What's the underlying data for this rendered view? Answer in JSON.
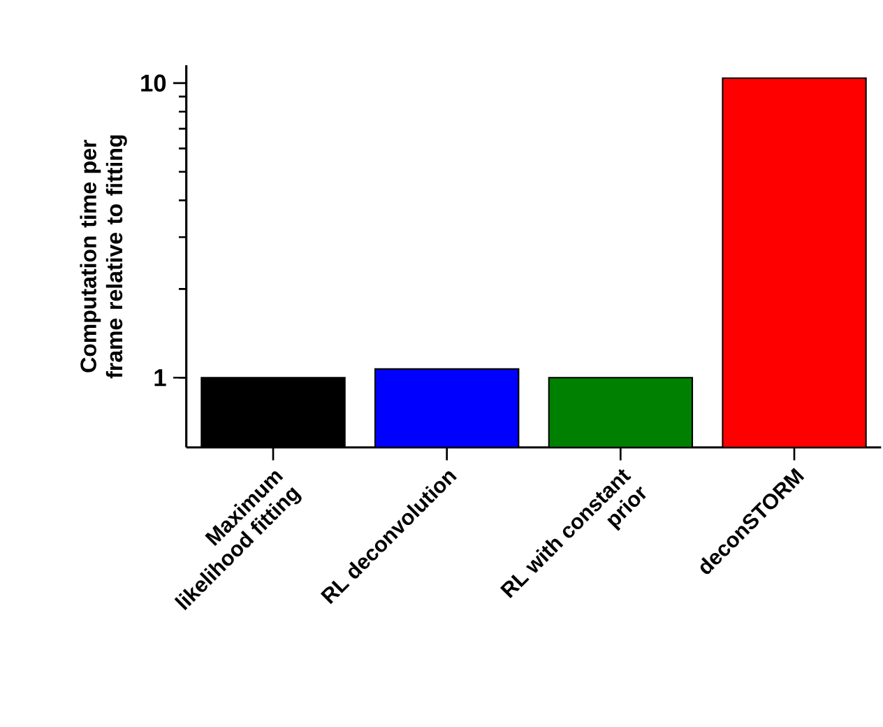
{
  "chart_data": {
    "type": "bar",
    "ylabel": "Computation time per frame relative to fitting",
    "categories": [
      "Maximum likelihood fitting",
      "RL deconvolution",
      "RL with constant prior",
      "deconSTORM"
    ],
    "values": [
      1.0,
      1.07,
      1.0,
      10.4
    ],
    "colors": [
      "#000000",
      "#0000ff",
      "#008000",
      "#ff0000"
    ],
    "log": "y",
    "ylim": [
      0.58,
      11.5
    ],
    "yticks": [
      1,
      10
    ]
  }
}
